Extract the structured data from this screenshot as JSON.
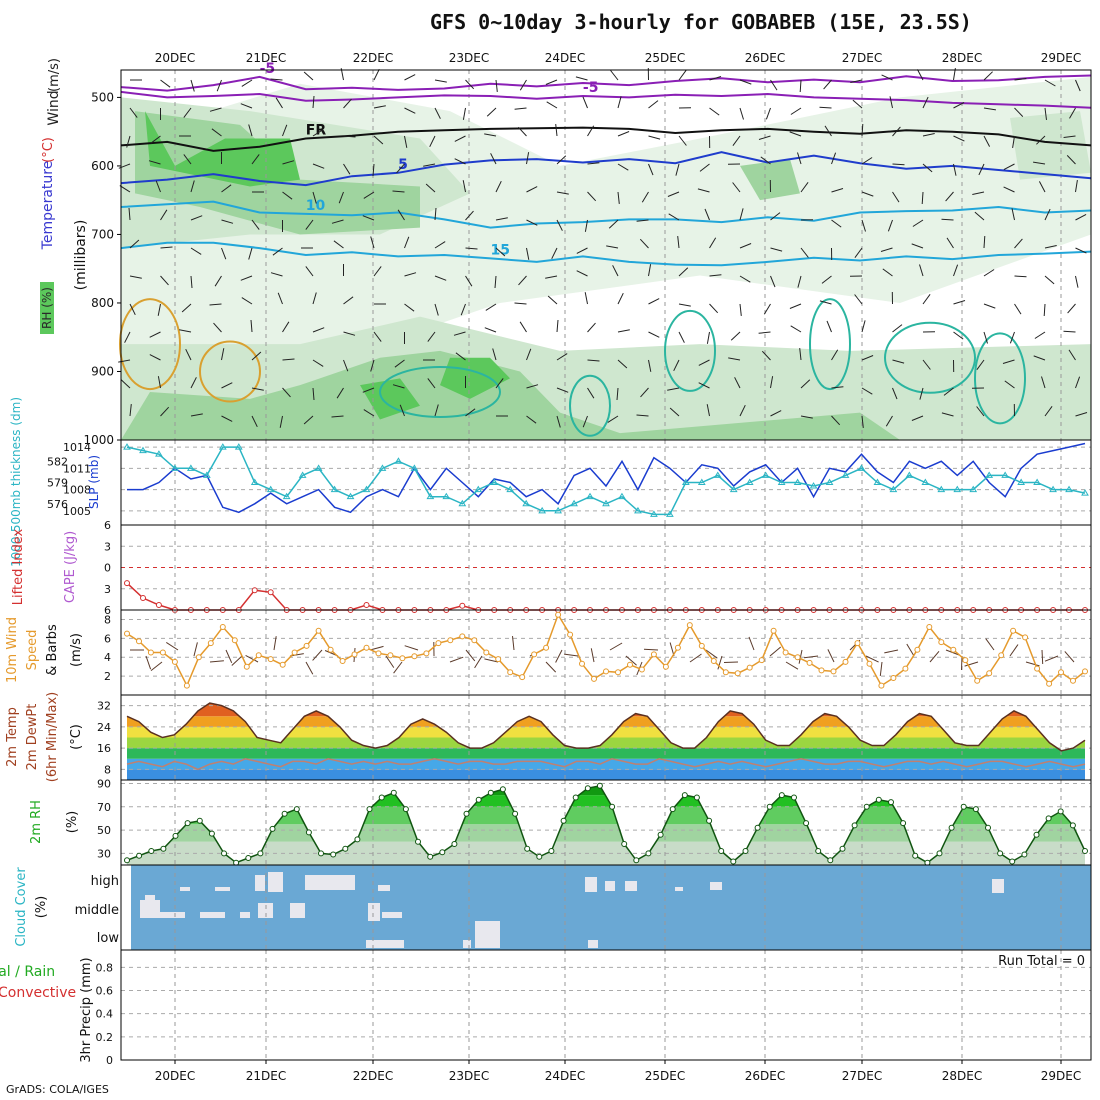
{
  "title": "GFS 0~10day 3-hourly for GOBABEB (15E, 23.5S)",
  "footer": "GrADS: COLA/IGES",
  "colors": {
    "wind_barb": "#222222",
    "isotherm_purple": "#8a1fb5",
    "isotherm_blue": "#1f3ccc",
    "isotherm_cyan": "#22a6d9",
    "slp": "#1a3ccf",
    "thickness": "#2bb5c4",
    "lifted": "#d43030",
    "wind_speed": "#e59a2c",
    "rh_green": "#22aa22",
    "cloud_bg": "#6aa8d4"
  },
  "chart_data": [
    {
      "type": "contour",
      "name": "upper",
      "x_ticks": [
        "20DEC",
        "21DEC",
        "22DEC",
        "23DEC",
        "24DEC",
        "25DEC",
        "26DEC",
        "27DEC",
        "28DEC",
        "29DEC"
      ],
      "ylabel_parts": [
        {
          "text": "Wind",
          "color": "#222222"
        },
        {
          "text": " (m/s)",
          "color": "#222222"
        },
        {
          "text": "Temperature",
          "color": "#3a3ad0"
        },
        {
          "text": " (°C)",
          "color": "#d43030"
        },
        {
          "text": "RH (%)",
          "color": "#2a2a2a"
        }
      ],
      "pressure_label": "(millibars)",
      "y_ticks": [
        500,
        600,
        700,
        800,
        900,
        1000
      ],
      "ylim": [
        460,
        1000
      ],
      "isotherms": [
        {
          "label": "-5",
          "color": "#8a1fb5",
          "y": [
            485,
            490,
            482,
            470,
            488,
            486,
            489,
            487,
            480,
            484,
            479,
            482,
            476,
            472,
            478,
            474,
            478,
            469,
            476,
            475,
            470,
            468
          ]
        },
        {
          "label": "-5",
          "color": "#8a1fb5",
          "y": [
            492,
            500,
            498,
            495,
            505,
            503,
            500,
            497,
            498,
            502,
            498,
            500,
            496,
            498,
            495,
            500,
            502,
            504,
            508,
            510,
            512,
            515
          ]
        },
        {
          "label": "FR",
          "color": "#111111",
          "y": [
            570,
            565,
            578,
            572,
            560,
            556,
            550,
            548,
            546,
            545,
            544,
            546,
            552,
            548,
            546,
            550,
            553,
            548,
            550,
            554,
            565,
            570
          ]
        },
        {
          "label": "5",
          "color": "#1f3ccc",
          "y": [
            625,
            620,
            612,
            622,
            628,
            615,
            610,
            598,
            592,
            590,
            595,
            590,
            596,
            580,
            595,
            585,
            596,
            604,
            600,
            606,
            612,
            618
          ]
        },
        {
          "label": "10",
          "color": "#22a6d9",
          "y": [
            660,
            656,
            652,
            668,
            670,
            672,
            668,
            678,
            690,
            684,
            682,
            678,
            678,
            682,
            675,
            680,
            668,
            666,
            665,
            660,
            668,
            665
          ]
        },
        {
          "label": "15",
          "color": "#22a6d9",
          "y": [
            720,
            712,
            712,
            720,
            730,
            726,
            732,
            730,
            735,
            740,
            732,
            740,
            744,
            745,
            740,
            734,
            738,
            732,
            736,
            730,
            728,
            725
          ]
        }
      ],
      "rh_levels": [
        10,
        30,
        50,
        70,
        90
      ]
    },
    {
      "type": "line",
      "name": "slp-thickness",
      "ylabel_left": "1000-500mb thickness (dm)",
      "ylabel_right": "SLP (mb)",
      "left_ticks": [
        576,
        579,
        582
      ],
      "right_ticks": [
        1005,
        1008,
        1011,
        1014
      ],
      "ylim_slp": [
        1003,
        1015
      ],
      "slp": [
        1008,
        1008,
        1009,
        1011,
        1009.5,
        1010,
        1005.5,
        1004.8,
        1006,
        1007.5,
        1006,
        1007,
        1008,
        1005.5,
        1004.8,
        1007,
        1008,
        1007,
        1011,
        1008,
        1011,
        1009,
        1007,
        1009.5,
        1009,
        1007,
        1008,
        1006,
        1010,
        1011,
        1008.5,
        1012,
        1008,
        1012.5,
        1011,
        1009,
        1011.5,
        1011,
        1008.5,
        1010.5,
        1011.5,
        1009,
        1011,
        1007,
        1011,
        1010.5,
        1013,
        1010.5,
        1009,
        1012,
        1011,
        1012,
        1010,
        1012,
        1009,
        1007,
        1011,
        1013,
        1013.5,
        1014,
        1014.5
      ],
      "thickness": [
        1014,
        1013.5,
        1013,
        1011,
        1011,
        1010,
        1014,
        1014,
        1009,
        1008,
        1007,
        1010,
        1011,
        1008,
        1007,
        1008,
        1011,
        1012,
        1011,
        1007,
        1007,
        1006,
        1008,
        1009,
        1008,
        1006,
        1005,
        1005,
        1006,
        1007,
        1006,
        1007,
        1005,
        1004.5,
        1004.5,
        1009,
        1009,
        1010,
        1008,
        1009,
        1010,
        1009,
        1009,
        1008.5,
        1009,
        1010,
        1011,
        1009,
        1008,
        1010,
        1009,
        1008,
        1008,
        1008,
        1010,
        1010,
        1009,
        1009,
        1008,
        1008,
        1007.5
      ]
    },
    {
      "type": "line",
      "name": "lifted-cape",
      "ylabel_left": "Lifted Index",
      "ylabel_right": "CAPE (J/kg)",
      "ticks": [
        -6,
        -3,
        0,
        3,
        6
      ],
      "lifted": [
        2.2,
        4.3,
        5.3,
        6,
        6,
        6,
        6,
        6,
        3.2,
        3.5,
        6,
        6,
        6,
        6,
        6,
        5.3,
        6,
        6,
        6,
        6,
        6,
        5.4,
        6,
        6,
        6,
        6,
        6,
        6,
        6,
        6,
        6,
        6,
        6,
        6,
        6,
        6,
        6,
        6,
        6,
        6,
        6,
        6,
        6,
        6,
        6,
        6,
        6,
        6,
        6,
        6,
        6,
        6,
        6,
        6,
        6,
        6,
        6,
        6,
        6,
        6,
        6
      ]
    },
    {
      "type": "line",
      "name": "wind-10m",
      "ylabel_a": "10m Wind",
      "ylabel_b": "Speed",
      "ylabel_c": "& Barbs",
      "ylabel_units": "(m/s)",
      "ticks": [
        2,
        4,
        6,
        8
      ],
      "ylim": [
        0,
        9
      ],
      "speed": [
        6.5,
        5.7,
        4.5,
        4.5,
        3.5,
        1,
        4,
        5.5,
        7.2,
        5.8,
        3,
        4.2,
        3.8,
        3.2,
        4.5,
        5.2,
        6.8,
        4.8,
        3.6,
        4.3,
        5,
        4.4,
        4.2,
        3.9,
        4.1,
        4.4,
        5.5,
        5.8,
        6.2,
        5.8,
        4.5,
        3.8,
        2.4,
        1.9,
        4.3,
        5,
        8.5,
        6.4,
        3.3,
        1.7,
        2.5,
        2.4,
        3.2,
        2.7,
        4.3,
        3,
        5,
        7.4,
        5.2,
        3.6,
        2.4,
        2.3,
        2.9,
        3.7,
        6.8,
        4.5,
        4,
        3.4,
        2.6,
        2.5,
        3.5,
        5.5,
        3.3,
        1,
        1.8,
        2.8,
        4.8,
        7.2,
        5.6,
        4.8,
        3.7,
        1.5,
        2.3,
        4.2,
        6.8,
        6.1,
        2.8,
        1.2,
        2.4,
        1.5,
        2.5
      ],
      "speed_short": true
    },
    {
      "type": "area",
      "name": "temp-2m",
      "ylabel": "2m Temp",
      "ylabel_b": "2m DewPt",
      "ylabel_c": "(6hr Min/Max)",
      "ylabel_units": "(°C)",
      "ticks": [
        8,
        16,
        24,
        32
      ],
      "ylim": [
        4,
        36
      ],
      "temp": [
        28,
        26,
        22,
        20,
        21,
        25,
        30,
        33,
        32,
        30,
        26,
        20,
        19,
        18,
        23,
        28,
        30,
        28,
        24,
        19,
        17,
        16,
        17,
        20,
        25,
        27,
        25,
        22,
        18,
        16,
        16,
        18,
        22,
        26,
        28,
        26,
        21,
        17,
        16,
        16,
        17,
        21,
        26,
        29,
        28,
        23,
        18,
        16,
        16,
        20,
        26,
        30,
        29,
        25,
        19,
        17,
        17,
        21,
        26,
        29,
        28,
        24,
        19,
        17,
        17,
        21,
        26,
        29,
        28,
        23,
        18,
        17,
        17,
        22,
        27,
        30,
        28,
        23,
        18,
        15,
        16,
        19
      ],
      "dewpt": [
        10,
        11,
        10,
        9,
        11,
        10,
        8,
        10,
        11,
        10,
        12,
        11,
        10,
        9,
        11,
        11,
        10,
        12,
        11,
        10,
        11,
        10,
        11,
        10,
        10,
        11,
        12,
        11,
        10,
        11,
        11,
        10,
        10,
        11,
        11,
        11,
        10,
        9,
        11,
        11,
        10,
        12,
        11,
        10,
        10,
        12,
        11,
        10,
        9,
        10,
        11,
        10,
        11,
        10,
        9,
        10,
        11,
        12,
        11,
        10,
        10,
        11,
        11,
        10,
        9,
        10,
        11,
        11,
        10,
        11,
        10,
        9,
        10,
        11,
        11,
        10,
        9,
        10,
        11,
        10,
        9,
        10
      ]
    },
    {
      "type": "area",
      "name": "rh-2m",
      "ylabel": "2m RH",
      "ylabel_units": "(%)",
      "ticks": [
        30,
        50,
        70,
        90
      ],
      "ylim": [
        20,
        93
      ],
      "rh": [
        24,
        28,
        32,
        34,
        45,
        56,
        58,
        47,
        30,
        22,
        26,
        30,
        51,
        64,
        68,
        48,
        30,
        29,
        34,
        42,
        68,
        78,
        82,
        68,
        40,
        27,
        31,
        38,
        64,
        76,
        82,
        85,
        64,
        34,
        27,
        32,
        58,
        78,
        86,
        88,
        70,
        38,
        24,
        30,
        46,
        68,
        80,
        78,
        58,
        32,
        23,
        32,
        52,
        70,
        80,
        78,
        56,
        32,
        24,
        34,
        54,
        70,
        76,
        74,
        56,
        28,
        22,
        30,
        52,
        70,
        68,
        52,
        30,
        23,
        29,
        46,
        60,
        66,
        54,
        32
      ],
      "rh_short": true
    },
    {
      "type": "table",
      "name": "cloud-cover",
      "ylabel": "Cloud Cover",
      "ylabel_units": "(%)",
      "rows": [
        "high",
        "middle",
        "low"
      ]
    },
    {
      "type": "bar",
      "name": "precip",
      "ylabel_left_a": "Total / Rain",
      "ylabel_left_b": "Convective",
      "ylabel": "3hr Precip (mm)",
      "ticks": [
        "0",
        "0.2",
        "0.4",
        "0.6",
        "0.8"
      ],
      "ylim": [
        0,
        0.95
      ],
      "run_total": "Run Total = 0",
      "values": []
    }
  ]
}
